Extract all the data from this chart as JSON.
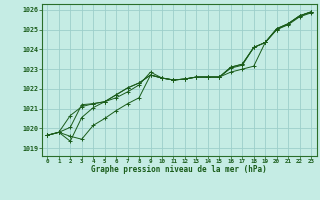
{
  "xlabel": "Graphe pression niveau de la mer (hPa)",
  "bg_color": "#c5ece4",
  "grid_color": "#9dcfca",
  "line_color": "#1a5c1a",
  "border_color": "#2a6e2a",
  "xlim": [
    -0.5,
    23.5
  ],
  "ylim": [
    1018.6,
    1026.3
  ],
  "yticks": [
    1019,
    1020,
    1021,
    1022,
    1023,
    1024,
    1025,
    1026
  ],
  "xticks": [
    0,
    1,
    2,
    3,
    4,
    5,
    6,
    7,
    8,
    9,
    10,
    11,
    12,
    13,
    14,
    15,
    16,
    17,
    18,
    19,
    20,
    21,
    22,
    23
  ],
  "series": [
    [
      1019.65,
      1019.8,
      1019.6,
      1019.45,
      1020.15,
      1020.5,
      1020.9,
      1021.25,
      1021.55,
      1022.7,
      1022.55,
      1022.45,
      1022.5,
      1022.6,
      1022.6,
      1022.6,
      1022.85,
      1023.0,
      1023.15,
      1024.35,
      1025.0,
      1025.25,
      1025.65,
      1025.85
    ],
    [
      1019.65,
      1019.8,
      1019.35,
      1020.55,
      1021.05,
      1021.35,
      1021.55,
      1021.85,
      1022.2,
      1022.85,
      1022.55,
      1022.45,
      1022.5,
      1022.6,
      1022.6,
      1022.6,
      1023.05,
      1023.2,
      1024.1,
      1024.35,
      1025.0,
      1025.3,
      1025.7,
      1025.9
    ],
    [
      1019.65,
      1019.8,
      1020.05,
      1021.2,
      1021.25,
      1021.35,
      1021.7,
      1022.05,
      1022.3,
      1022.7,
      1022.55,
      1022.45,
      1022.5,
      1022.6,
      1022.6,
      1022.6,
      1023.1,
      1023.25,
      1024.1,
      1024.35,
      1025.05,
      1025.3,
      1025.7,
      1025.9
    ],
    [
      1019.65,
      1019.8,
      1020.65,
      1021.1,
      1021.25,
      1021.35,
      1021.7,
      1022.05,
      1022.3,
      1022.7,
      1022.55,
      1022.45,
      1022.5,
      1022.6,
      1022.6,
      1022.6,
      1023.1,
      1023.25,
      1024.1,
      1024.35,
      1025.05,
      1025.3,
      1025.7,
      1025.9
    ]
  ]
}
